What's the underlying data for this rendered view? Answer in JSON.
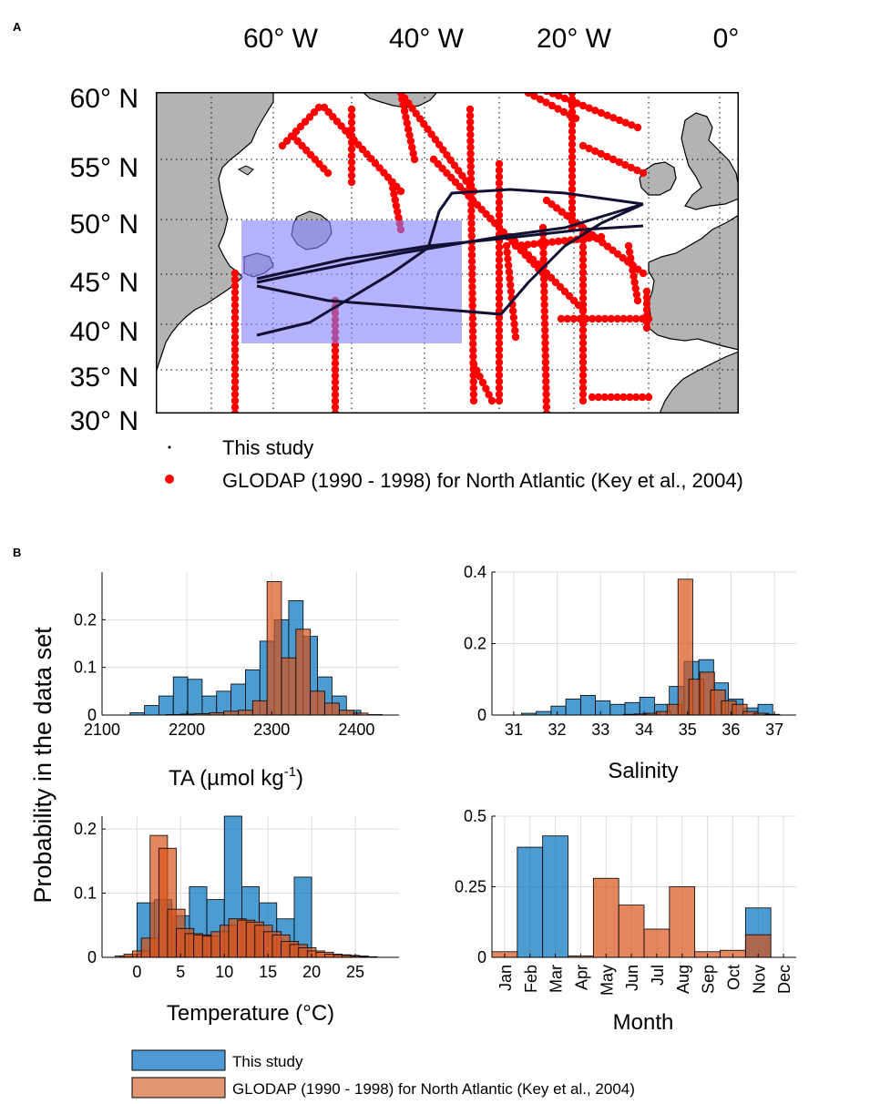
{
  "panel_a": {
    "letter": "A",
    "lon_labels": [
      "60° W",
      "40° W",
      "20° W",
      "0°"
    ],
    "lat_labels": [
      "60° N",
      "55° N",
      "50° N",
      "45° N",
      "40° N",
      "35° N",
      "30° N"
    ],
    "legend": {
      "this_study": "This study",
      "glodap": "GLODAP (1990 - 1998) for North Atlantic (Key et al., 2004)"
    },
    "colors": {
      "land": "#b3b3b3",
      "glodap": "#ff0000",
      "box": "#8080ff",
      "track": "#111133"
    }
  },
  "panel_b": {
    "letter": "B",
    "ylabel": "Probability in the data set",
    "legend": {
      "this_study": "This study",
      "glodap": "GLODAP (1990 - 1998) for North Atlantic (Key et al., 2004)"
    },
    "colors": {
      "this_study": "#0072bd",
      "glodap": "#d95319"
    }
  },
  "chart_data": [
    {
      "id": "ta",
      "type": "bar",
      "title": "",
      "xlabel": "TA (µmol kg",
      "xlabel_sup": "-1",
      "xlabel_tail": ")",
      "xlim": [
        2100,
        2450
      ],
      "ylim": [
        0,
        0.3
      ],
      "xticks": [
        2100,
        2200,
        2300,
        2400
      ],
      "yticks": [
        0,
        0.1,
        0.2
      ],
      "ytick_labels": [
        "0",
        "0.1",
        "0.2"
      ],
      "bin_width": 17,
      "series": [
        {
          "name": "This study",
          "x": [
            2141.5,
            2158.5,
            2175.5,
            2192.5,
            2209.5,
            2226.5,
            2243.5,
            2260.5,
            2277.5,
            2294.5,
            2311.5,
            2328.5,
            2345.5,
            2362.5,
            2379.5,
            2396.5
          ],
          "values": [
            0.005,
            0.02,
            0.04,
            0.08,
            0.075,
            0.04,
            0.05,
            0.065,
            0.095,
            0.155,
            0.2,
            0.24,
            0.165,
            0.08,
            0.04,
            0.01
          ]
        },
        {
          "name": "GLODAP (1990 - 1998) for North Atlantic (Key et al., 2004)",
          "x": [
            2167,
            2184,
            2201,
            2218,
            2235,
            2252,
            2269,
            2286,
            2303,
            2320,
            2337,
            2354,
            2371,
            2388,
            2405,
            2422
          ],
          "values": [
            0,
            0.001,
            0.002,
            0.003,
            0.005,
            0.008,
            0.01,
            0.03,
            0.28,
            0.12,
            0.18,
            0.05,
            0.025,
            0.01,
            0.004,
            0.001
          ]
        }
      ]
    },
    {
      "id": "salinity",
      "type": "bar",
      "title": "",
      "xlabel": "Salinity",
      "xlim": [
        30.5,
        37.5
      ],
      "ylim": [
        0,
        0.4
      ],
      "xticks": [
        31,
        32,
        33,
        34,
        35,
        36,
        37
      ],
      "yticks": [
        0,
        0.2,
        0.4
      ],
      "ytick_labels": [
        "0",
        "0.2",
        "0.4"
      ],
      "bin_width": 0.34,
      "series": [
        {
          "name": "This study",
          "x": [
            31.35,
            31.69,
            32.03,
            32.37,
            32.71,
            33.05,
            33.39,
            33.73,
            34.07,
            34.41,
            34.75,
            35.09,
            35.43,
            35.77,
            36.11,
            36.45,
            36.79
          ],
          "values": [
            0.005,
            0.01,
            0.025,
            0.045,
            0.055,
            0.04,
            0.03,
            0.035,
            0.05,
            0.03,
            0.08,
            0.15,
            0.155,
            0.09,
            0.045,
            0.02,
            0.03
          ]
        },
        {
          "name": "GLODAP (1990 - 1998) for North Atlantic (Key et al., 2004)",
          "x": [
            33.7,
            33.95,
            34.2,
            34.45,
            34.7,
            34.95,
            35.2,
            35.45,
            35.7,
            35.95,
            36.2,
            36.45,
            36.7,
            36.95
          ],
          "values": [
            0.002,
            0.003,
            0.005,
            0.01,
            0.03,
            0.38,
            0.1,
            0.12,
            0.07,
            0.04,
            0.03,
            0.01,
            0.005,
            0.002
          ]
        }
      ]
    },
    {
      "id": "temperature",
      "type": "bar",
      "title": "",
      "xlabel": "Temperature (°C)",
      "xlim": [
        -4,
        30
      ],
      "ylim": [
        0,
        0.22
      ],
      "xticks": [
        0,
        5,
        10,
        15,
        20,
        25
      ],
      "yticks": [
        0,
        0.1,
        0.2
      ],
      "ytick_labels": [
        "0",
        "0.1",
        "0.2"
      ],
      "bin_width": 2,
      "series": [
        {
          "name": "This study",
          "x": [
            -1,
            1,
            3,
            5,
            7,
            9,
            11,
            13,
            15,
            17,
            19
          ],
          "values": [
            0.002,
            0.085,
            0.09,
            0.065,
            0.11,
            0.09,
            0.22,
            0.11,
            0.085,
            0.06,
            0.125
          ]
        },
        {
          "name": "GLODAP (1990 - 1998) for North Atlantic (Key et al., 2004)",
          "x": [
            -1.5,
            -0.5,
            0.5,
            1.5,
            2.5,
            3.5,
            4.5,
            5.5,
            6.5,
            7.5,
            8.5,
            9.5,
            10.5,
            11.5,
            12.5,
            13.5,
            14.5,
            15.5,
            16.5,
            17.5,
            18.5,
            19.5,
            20.5,
            21.5,
            22.5,
            23.5,
            24.5,
            25.5,
            26.5
          ],
          "values": [
            0.002,
            0.005,
            0.01,
            0.03,
            0.19,
            0.17,
            0.075,
            0.045,
            0.037,
            0.035,
            0.033,
            0.04,
            0.05,
            0.06,
            0.058,
            0.055,
            0.05,
            0.04,
            0.035,
            0.025,
            0.02,
            0.015,
            0.01,
            0.008,
            0.005,
            0.004,
            0.003,
            0.002,
            0.001
          ]
        }
      ]
    },
    {
      "id": "month",
      "type": "bar",
      "title": "",
      "xlabel": "Month",
      "xlim": [
        0.5,
        12.5
      ],
      "ylim": [
        0,
        0.5
      ],
      "categories": [
        "Jan",
        "Feb",
        "Mar",
        "Apr",
        "May",
        "Jun",
        "Jul",
        "Aug",
        "Sep",
        "Oct",
        "Nov",
        "Dec"
      ],
      "yticks": [
        0,
        0.25,
        0.5
      ],
      "ytick_labels": [
        "0",
        "0.25",
        "0.5"
      ],
      "bin_width": 1,
      "series": [
        {
          "name": "This study",
          "x": [
            1,
            2,
            3,
            4,
            5,
            6,
            7,
            8,
            9,
            10,
            11,
            12
          ],
          "values": [
            0,
            0.39,
            0.43,
            0,
            0,
            0,
            0,
            0,
            0,
            0,
            0.175,
            0
          ]
        },
        {
          "name": "GLODAP (1990 - 1998) for North Atlantic (Key et al., 2004)",
          "x": [
            1,
            2,
            3,
            4,
            5,
            6,
            7,
            8,
            9,
            10,
            11,
            12
          ],
          "values": [
            0.02,
            0,
            0,
            0.005,
            0.28,
            0.185,
            0.1,
            0.25,
            0.02,
            0.025,
            0.08,
            0
          ]
        }
      ]
    }
  ]
}
